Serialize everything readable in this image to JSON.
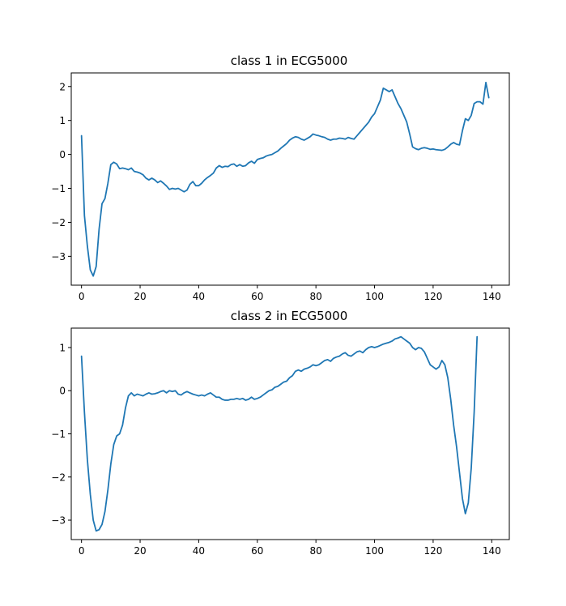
{
  "chart_data": [
    {
      "type": "line",
      "title": "class 1 in ECG5000",
      "xlabel": "",
      "ylabel": "",
      "xlim": [
        -3.5,
        146
      ],
      "ylim": [
        -3.85,
        2.4
      ],
      "xticks": [
        0,
        20,
        40,
        60,
        80,
        100,
        120,
        140
      ],
      "yticks": [
        -3,
        -2,
        -1,
        0,
        1,
        2
      ],
      "grid": false,
      "color": "#1f77b4",
      "series": [
        {
          "values": [
            0.55,
            -1.8,
            -2.7,
            -3.4,
            -3.58,
            -3.3,
            -2.2,
            -1.45,
            -1.3,
            -0.85,
            -0.3,
            -0.23,
            -0.28,
            -0.42,
            -0.4,
            -0.42,
            -0.45,
            -0.4,
            -0.5,
            -0.52,
            -0.55,
            -0.6,
            -0.7,
            -0.75,
            -0.7,
            -0.75,
            -0.83,
            -0.78,
            -0.85,
            -0.93,
            -1.03,
            -1.0,
            -1.02,
            -1.0,
            -1.05,
            -1.1,
            -1.05,
            -0.88,
            -0.8,
            -0.92,
            -0.92,
            -0.85,
            -0.75,
            -0.68,
            -0.62,
            -0.55,
            -0.4,
            -0.33,
            -0.38,
            -0.35,
            -0.36,
            -0.3,
            -0.28,
            -0.35,
            -0.3,
            -0.35,
            -0.33,
            -0.25,
            -0.2,
            -0.26,
            -0.15,
            -0.12,
            -0.1,
            -0.05,
            -0.02,
            0.0,
            0.05,
            0.1,
            0.18,
            0.25,
            0.32,
            0.42,
            0.48,
            0.52,
            0.5,
            0.45,
            0.42,
            0.47,
            0.52,
            0.6,
            0.57,
            0.55,
            0.52,
            0.5,
            0.45,
            0.42,
            0.45,
            0.45,
            0.48,
            0.47,
            0.45,
            0.5,
            0.47,
            0.45,
            0.55,
            0.65,
            0.75,
            0.85,
            0.95,
            1.1,
            1.2,
            1.4,
            1.6,
            1.95,
            1.9,
            1.85,
            1.9,
            1.7,
            1.5,
            1.35,
            1.15,
            0.95,
            0.6,
            0.22,
            0.17,
            0.14,
            0.18,
            0.2,
            0.18,
            0.15,
            0.16,
            0.14,
            0.13,
            0.12,
            0.15,
            0.22,
            0.3,
            0.35,
            0.3,
            0.28,
            0.7,
            1.05,
            1.0,
            1.15,
            1.5,
            1.55,
            1.55,
            1.48,
            2.12,
            1.67
          ]
        }
      ]
    },
    {
      "type": "line",
      "title": "class 2 in ECG5000",
      "xlabel": "",
      "ylabel": "",
      "xlim": [
        -3.5,
        146
      ],
      "ylim": [
        -3.45,
        1.45
      ],
      "xticks": [
        0,
        20,
        40,
        60,
        80,
        100,
        120,
        140
      ],
      "yticks": [
        -3,
        -2,
        -1,
        0,
        1
      ],
      "grid": false,
      "color": "#1f77b4",
      "series": [
        {
          "values": [
            0.8,
            -0.5,
            -1.6,
            -2.4,
            -3.0,
            -3.25,
            -3.22,
            -3.1,
            -2.8,
            -2.3,
            -1.7,
            -1.25,
            -1.05,
            -1.0,
            -0.8,
            -0.4,
            -0.12,
            -0.05,
            -0.12,
            -0.08,
            -0.1,
            -0.12,
            -0.08,
            -0.05,
            -0.08,
            -0.07,
            -0.05,
            -0.02,
            0.0,
            -0.05,
            0.0,
            -0.02,
            0.0,
            -0.08,
            -0.1,
            -0.05,
            -0.02,
            -0.05,
            -0.08,
            -0.1,
            -0.12,
            -0.1,
            -0.12,
            -0.08,
            -0.05,
            -0.1,
            -0.15,
            -0.15,
            -0.2,
            -0.22,
            -0.22,
            -0.2,
            -0.2,
            -0.18,
            -0.2,
            -0.18,
            -0.22,
            -0.2,
            -0.15,
            -0.2,
            -0.18,
            -0.15,
            -0.1,
            -0.05,
            0.0,
            0.02,
            0.08,
            0.1,
            0.15,
            0.2,
            0.22,
            0.3,
            0.35,
            0.45,
            0.48,
            0.45,
            0.5,
            0.52,
            0.55,
            0.6,
            0.58,
            0.6,
            0.65,
            0.7,
            0.72,
            0.68,
            0.75,
            0.78,
            0.8,
            0.85,
            0.88,
            0.82,
            0.8,
            0.85,
            0.9,
            0.92,
            0.88,
            0.95,
            1.0,
            1.02,
            1.0,
            1.02,
            1.05,
            1.08,
            1.1,
            1.12,
            1.15,
            1.2,
            1.22,
            1.25,
            1.2,
            1.15,
            1.1,
            1.0,
            0.95,
            1.0,
            0.98,
            0.9,
            0.75,
            0.6,
            0.55,
            0.5,
            0.55,
            0.7,
            0.6,
            0.3,
            -0.2,
            -0.8,
            -1.3,
            -1.9,
            -2.5,
            -2.85,
            -2.6,
            -1.8,
            -0.5,
            1.25
          ]
        }
      ]
    }
  ]
}
